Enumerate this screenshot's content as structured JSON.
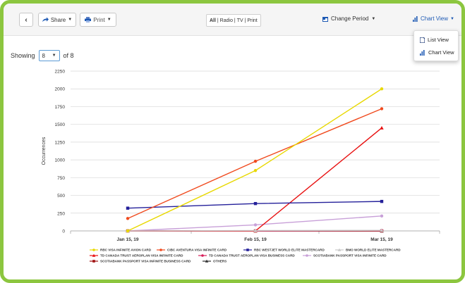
{
  "toolbar": {
    "back_icon": "chevron-left-icon",
    "share_label": "Share",
    "print_label": "Print",
    "media_links": [
      "All",
      "Radio",
      "TV",
      "Print"
    ],
    "change_period_label": "Change Period",
    "chart_view_label": "Chart View"
  },
  "view_menu": {
    "items": [
      {
        "label": "List View",
        "icon": "list-doc-icon"
      },
      {
        "label": "Chart View",
        "icon": "bar-chart-icon"
      }
    ]
  },
  "showing": {
    "prefix": "Showing",
    "selected": "8",
    "suffix": "of 8"
  },
  "colors": {
    "accent_green": "#8cc63f",
    "link_blue": "#1e5ab4"
  },
  "chart_data": {
    "type": "line",
    "ylabel": "Occurrences",
    "xlabel": "",
    "categories": [
      "Jan 15, 19",
      "Feb 15, 19",
      "Mar 15, 19"
    ],
    "yticks": [
      0,
      250,
      500,
      750,
      1000,
      1250,
      1500,
      1750,
      2000,
      2250
    ],
    "ylim": [
      0,
      2250
    ],
    "grid": true,
    "legend_position": "bottom",
    "series": [
      {
        "name": "RBC VISA INFINITE AVION CARD",
        "color": "#e8d800",
        "marker": "circle",
        "values": [
          0,
          850,
          2000
        ]
      },
      {
        "name": "CIBC AVENTURA VISA INFINITE CARD",
        "color": "#f04a1e",
        "marker": "circle",
        "values": [
          175,
          980,
          1720
        ]
      },
      {
        "name": "RBC WESTJET WORLD ELITE MASTERCARD",
        "color": "#24209a",
        "marker": "square",
        "values": [
          320,
          385,
          415
        ]
      },
      {
        "name": "BMO WORLD ELITE MASTERCARD",
        "color": "#c8c8c8",
        "marker": "triangle",
        "values": [
          0,
          5,
          8
        ]
      },
      {
        "name": "TD CANADA TRUST AEROPLAN VISA INFINITE CARD",
        "color": "#e81010",
        "marker": "triangle",
        "values": [
          0,
          0,
          1450
        ]
      },
      {
        "name": "TD CANADA TRUST AEROPLAN VISA BUSINESS CARD",
        "color": "#d81e5a",
        "marker": "circle",
        "values": [
          0,
          0,
          5
        ]
      },
      {
        "name": "SCOTIABANK PASSPORT VISA INFINITE CARD",
        "color": "#c8a0d8",
        "marker": "circle",
        "values": [
          0,
          85,
          210
        ]
      },
      {
        "name": "SCOTIABANK PASSPORT VISA INFINITE BUSINESS CARD",
        "color": "#a01010",
        "marker": "square",
        "values": [
          0,
          0,
          0
        ]
      },
      {
        "name": "OTHERS",
        "color": "#303030",
        "marker": "triangle",
        "values": [
          0,
          0,
          0
        ]
      }
    ]
  }
}
